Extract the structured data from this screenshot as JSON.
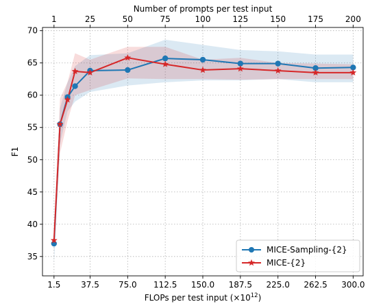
{
  "chart_data": {
    "type": "line",
    "xlabel": "FLOPs per test input (×10",
    "xlabel_exponent": "12",
    "xlabel_suffix": ")",
    "top_xlabel": "Number of prompts per test input",
    "ylabel": "F1",
    "xlim": [
      -10,
      310
    ],
    "ylim": [
      32,
      70.5
    ],
    "bottom_ticks": [
      {
        "value": 1.5,
        "label": "1.5"
      },
      {
        "value": 37.5,
        "label": "37.5"
      },
      {
        "value": 75.0,
        "label": "75.0"
      },
      {
        "value": 112.5,
        "label": "112.5"
      },
      {
        "value": 150.0,
        "label": "150.0"
      },
      {
        "value": 187.5,
        "label": "187.5"
      },
      {
        "value": 225.0,
        "label": "225.0"
      },
      {
        "value": 262.5,
        "label": "262.5"
      },
      {
        "value": 300.0,
        "label": "300.0"
      }
    ],
    "top_ticks": [
      {
        "value": 1.5,
        "label": "1"
      },
      {
        "value": 37.5,
        "label": "25"
      },
      {
        "value": 75.0,
        "label": "50"
      },
      {
        "value": 112.5,
        "label": "75"
      },
      {
        "value": 150.0,
        "label": "100"
      },
      {
        "value": 187.5,
        "label": "125"
      },
      {
        "value": 225.0,
        "label": "150"
      },
      {
        "value": 262.5,
        "label": "175"
      },
      {
        "value": 300.0,
        "label": "200"
      }
    ],
    "y_ticks": [
      35,
      40,
      45,
      50,
      55,
      60,
      65,
      70
    ],
    "grid": true,
    "legend_position": "bottom-right",
    "series": [
      {
        "name": "MICE-Sampling-{2}",
        "color": "#1f77b4",
        "marker": "circle",
        "x": [
          1.5,
          7.5,
          15.0,
          22.5,
          37.5,
          75.0,
          112.5,
          150.0,
          187.5,
          225.0,
          262.5,
          300.0
        ],
        "y": [
          37.0,
          55.5,
          59.7,
          61.4,
          63.8,
          63.9,
          65.7,
          65.5,
          64.9,
          64.9,
          64.2,
          64.3
        ],
        "lower": [
          34.0,
          52.5,
          57.5,
          59.0,
          60.5,
          61.5,
          62.0,
          62.3,
          62.3,
          62.5,
          62.0,
          62.0
        ],
        "upper": [
          38.5,
          58.0,
          62.0,
          64.5,
          66.2,
          66.5,
          68.6,
          67.8,
          67.0,
          66.8,
          66.3,
          66.3
        ]
      },
      {
        "name": "MICE-{2}",
        "color": "#d62728",
        "marker": "star",
        "x": [
          1.5,
          7.5,
          15.0,
          22.5,
          37.5,
          75.0,
          112.5,
          150.0,
          187.5,
          225.0,
          262.5,
          300.0
        ],
        "y": [
          37.5,
          55.5,
          59.3,
          63.7,
          63.5,
          65.8,
          64.8,
          63.9,
          64.1,
          63.8,
          63.5,
          63.5
        ],
        "lower": [
          36.0,
          51.0,
          56.0,
          60.0,
          60.8,
          62.6,
          62.5,
          62.5,
          62.4,
          62.5,
          62.5,
          62.5
        ],
        "upper": [
          39.0,
          59.5,
          62.0,
          66.5,
          65.5,
          67.5,
          67.5,
          65.5,
          65.8,
          65.0,
          64.9,
          64.8
        ]
      }
    ]
  }
}
